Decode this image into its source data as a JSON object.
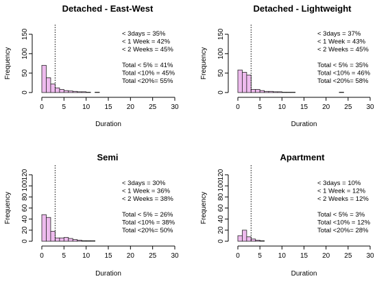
{
  "chart_data": [
    {
      "type": "bar",
      "title": "Detached - East-West",
      "xlabel": "Duration",
      "ylabel": "Frequency",
      "xlim": [
        0,
        30
      ],
      "ylim": [
        0,
        150
      ],
      "xticks": [
        "0",
        "5",
        "10",
        "15",
        "20",
        "25",
        "30"
      ],
      "yticks": [
        "0",
        "50",
        "100",
        "150"
      ],
      "vline_x": 3,
      "bin_width": 1,
      "values": [
        70,
        38,
        22,
        12,
        8,
        5,
        4,
        3,
        2,
        2,
        1,
        0,
        1,
        0,
        0,
        0,
        0,
        0,
        0,
        0,
        0,
        0,
        0,
        0,
        0,
        0,
        0,
        0,
        0,
        0
      ],
      "annotations": [
        "< 3days = 35%",
        "< 1 Week = 42%",
        "< 2 Weeks = 45%",
        "",
        "Total < 5% = 41%",
        "Total <10% = 45%",
        "Total <20%= 55%"
      ]
    },
    {
      "type": "bar",
      "title": "Detached - Lightweight",
      "xlabel": "Duration",
      "ylabel": "Frequency",
      "xlim": [
        0,
        30
      ],
      "ylim": [
        0,
        150
      ],
      "xticks": [
        "0",
        "5",
        "10",
        "15",
        "20",
        "25",
        "30"
      ],
      "yticks": [
        "0",
        "50",
        "100",
        "150"
      ],
      "vline_x": 3,
      "bin_width": 1,
      "values": [
        58,
        52,
        45,
        8,
        8,
        5,
        3,
        3,
        2,
        2,
        1,
        1,
        1,
        0,
        0,
        0,
        0,
        0,
        0,
        0,
        0,
        0,
        0,
        1,
        0,
        0,
        0,
        0,
        0,
        0
      ],
      "annotations": [
        "< 3days = 37%",
        "< 1 Week = 43%",
        "< 2 Weeks = 45%",
        "",
        "Total < 5% = 35%",
        "Total <10% = 46%",
        "Total <20%= 58%"
      ]
    },
    {
      "type": "bar",
      "title": "Semi",
      "xlabel": "Duration",
      "ylabel": "Frequency",
      "xlim": [
        0,
        30
      ],
      "ylim": [
        0,
        120
      ],
      "xticks": [
        "0",
        "5",
        "10",
        "15",
        "20",
        "25",
        "30"
      ],
      "yticks": [
        "0",
        "20",
        "40",
        "60",
        "80",
        "100",
        "120"
      ],
      "vline_x": 3,
      "bin_width": 1,
      "values": [
        48,
        43,
        18,
        6,
        6,
        7,
        5,
        3,
        2,
        1,
        1,
        1,
        0,
        0,
        0,
        0,
        0,
        0,
        0,
        0,
        0,
        0,
        0,
        0,
        0,
        0,
        0,
        0,
        0,
        0
      ],
      "annotations": [
        "< 3days = 30%",
        "< 1 Week = 36%",
        "< 2 Weeks = 38%",
        "",
        "Total < 5% = 26%",
        "Total <10% = 38%",
        "Total <20%= 50%"
      ]
    },
    {
      "type": "bar",
      "title": "Apartment",
      "xlabel": "Duration",
      "ylabel": "Frequency",
      "xlim": [
        0,
        30
      ],
      "ylim": [
        0,
        120
      ],
      "xticks": [
        "0",
        "5",
        "10",
        "15",
        "20",
        "25",
        "30"
      ],
      "yticks": [
        "0",
        "20",
        "40",
        "60",
        "80",
        "100",
        "120"
      ],
      "vline_x": 3,
      "bin_width": 1,
      "values": [
        10,
        20,
        8,
        4,
        2,
        1,
        0,
        0,
        0,
        0,
        0,
        0,
        0,
        0,
        0,
        0,
        0,
        0,
        0,
        0,
        0,
        0,
        0,
        0,
        0,
        0,
        0,
        0,
        0,
        0
      ],
      "annotations": [
        "< 3days = 10%",
        "< 1 Week = 12%",
        "< 2 Weeks = 12%",
        "",
        "Total < 5% = 3%",
        "Total <10% = 12%",
        "Total <20%= 28%"
      ]
    }
  ],
  "colors": {
    "bar_fill": "#eebbee",
    "bar_stroke": "#222222",
    "axis": "#000000"
  }
}
